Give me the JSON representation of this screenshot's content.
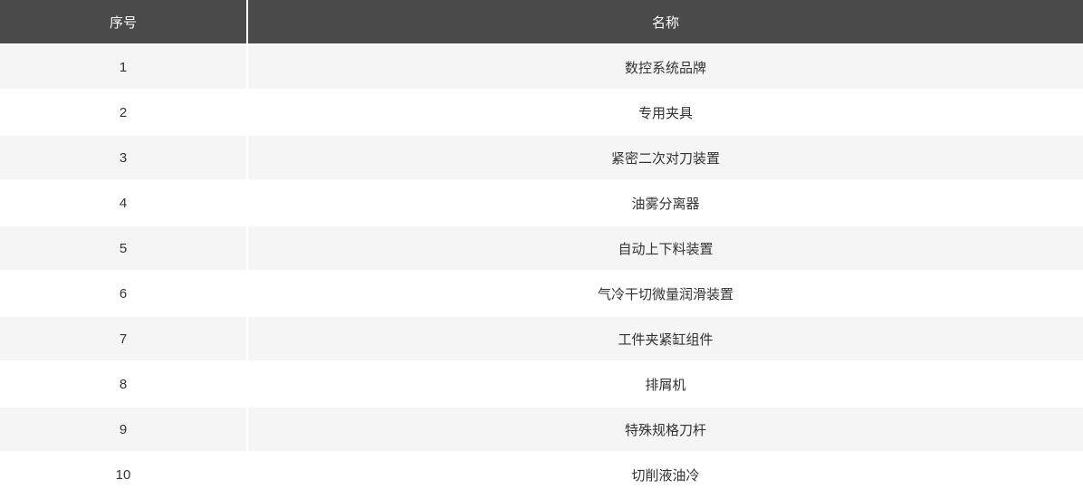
{
  "table": {
    "columns": [
      {
        "label": "序号"
      },
      {
        "label": "名称"
      }
    ],
    "rows": [
      {
        "index": "1",
        "name": "数控系统品牌"
      },
      {
        "index": "2",
        "name": "专用夹具"
      },
      {
        "index": "3",
        "name": "紧密二次对刀装置"
      },
      {
        "index": "4",
        "name": "油雾分离器"
      },
      {
        "index": "5",
        "name": "自动上下料装置"
      },
      {
        "index": "6",
        "name": "气冷干切微量润滑装置"
      },
      {
        "index": "7",
        "name": "工件夹紧缸组件"
      },
      {
        "index": "8",
        "name": "排屑机"
      },
      {
        "index": "9",
        "name": "特殊规格刀杆"
      },
      {
        "index": "10",
        "name": "切削液油冷"
      }
    ]
  },
  "colors": {
    "header_bg": "#4a4a4a",
    "header_text": "#ffffff",
    "row_odd_bg": "#f5f5f5",
    "row_even_bg": "#ffffff",
    "body_text": "#333333",
    "divider": "#ffffff"
  }
}
